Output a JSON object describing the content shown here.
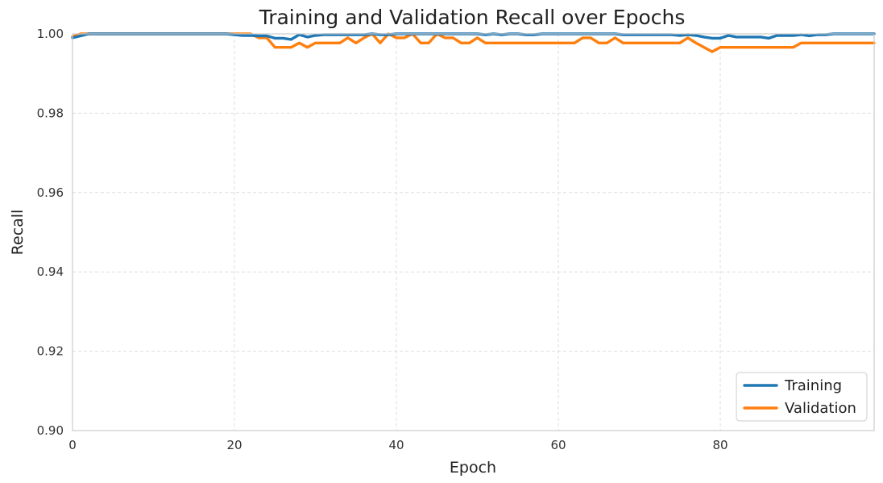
{
  "chart_data": {
    "type": "line",
    "title": "Training and Validation Recall over Epochs",
    "xlabel": "Epoch",
    "ylabel": "Recall",
    "xlim": [
      0,
      99
    ],
    "ylim": [
      0.9,
      1.0
    ],
    "xticks": [
      0,
      20,
      40,
      60,
      80
    ],
    "yticks": [
      0.9,
      0.92,
      0.94,
      0.96,
      0.98,
      1.0
    ],
    "xtick_labels": [
      "0",
      "20",
      "40",
      "60",
      "80"
    ],
    "ytick_labels": [
      "0.90",
      "0.92",
      "0.94",
      "0.96",
      "0.98",
      "1.00"
    ],
    "grid": true,
    "legend_position": "bottom-right",
    "series": [
      {
        "name": "Training",
        "color": "#1f77b4",
        "x": [
          0,
          1,
          2,
          3,
          4,
          5,
          6,
          7,
          8,
          9,
          10,
          11,
          12,
          13,
          14,
          15,
          16,
          17,
          18,
          19,
          20,
          21,
          22,
          23,
          24,
          25,
          26,
          27,
          28,
          29,
          30,
          31,
          32,
          33,
          34,
          35,
          36,
          37,
          38,
          39,
          40,
          41,
          42,
          43,
          44,
          45,
          46,
          47,
          48,
          49,
          50,
          51,
          52,
          53,
          54,
          55,
          56,
          57,
          58,
          59,
          60,
          61,
          62,
          63,
          64,
          65,
          66,
          67,
          68,
          69,
          70,
          71,
          72,
          73,
          74,
          75,
          76,
          77,
          78,
          79,
          80,
          81,
          82,
          83,
          84,
          85,
          86,
          87,
          88,
          89,
          90,
          91,
          92,
          93,
          94,
          95,
          96,
          97,
          98,
          99
        ],
        "values": [
          0.999,
          0.9995,
          1.0,
          1.0,
          1.0,
          1.0,
          1.0,
          1.0,
          1.0,
          1.0,
          1.0,
          1.0,
          1.0,
          1.0,
          1.0,
          1.0,
          1.0,
          1.0,
          1.0,
          1.0,
          0.9998,
          0.9996,
          0.9996,
          0.9995,
          0.9995,
          0.9989,
          0.9989,
          0.9986,
          0.9998,
          0.9992,
          0.9996,
          0.9998,
          0.9998,
          0.9998,
          0.9998,
          0.9998,
          0.9998,
          1.0,
          0.9998,
          0.9998,
          1.0,
          1.0,
          1.0,
          1.0,
          1.0,
          1.0,
          1.0,
          1.0,
          1.0,
          1.0,
          1.0,
          0.9998,
          1.0,
          0.9998,
          1.0,
          1.0,
          0.9998,
          0.9998,
          1.0,
          1.0,
          1.0,
          1.0,
          1.0,
          1.0,
          1.0,
          1.0,
          1.0,
          1.0,
          0.9998,
          0.9998,
          0.9998,
          0.9998,
          0.9998,
          0.9998,
          0.9998,
          0.9996,
          0.9998,
          0.9996,
          0.9992,
          0.9989,
          0.9989,
          0.9996,
          0.9992,
          0.9992,
          0.9992,
          0.9992,
          0.9989,
          0.9996,
          0.9996,
          0.9996,
          0.9998,
          0.9995,
          0.9998,
          0.9998,
          1.0,
          1.0,
          1.0,
          1.0,
          1.0,
          1.0
        ]
      },
      {
        "name": "Validation",
        "color": "#ff7f0e",
        "x": [
          0,
          1,
          2,
          3,
          4,
          5,
          6,
          7,
          8,
          9,
          10,
          11,
          12,
          13,
          14,
          15,
          16,
          17,
          18,
          19,
          20,
          21,
          22,
          23,
          24,
          25,
          26,
          27,
          28,
          29,
          30,
          31,
          32,
          33,
          34,
          35,
          36,
          37,
          38,
          39,
          40,
          41,
          42,
          43,
          44,
          45,
          46,
          47,
          48,
          49,
          50,
          51,
          52,
          53,
          54,
          55,
          56,
          57,
          58,
          59,
          60,
          61,
          62,
          63,
          64,
          65,
          66,
          67,
          68,
          69,
          70,
          71,
          72,
          73,
          74,
          75,
          76,
          77,
          78,
          79,
          80,
          81,
          82,
          83,
          84,
          85,
          86,
          87,
          88,
          89,
          90,
          91,
          92,
          93,
          94,
          95,
          96,
          97,
          98,
          99
        ],
        "values": [
          0.9993,
          1.0,
          1.0,
          1.0,
          1.0,
          1.0,
          1.0,
          1.0,
          1.0,
          1.0,
          1.0,
          1.0,
          1.0,
          1.0,
          1.0,
          1.0,
          1.0,
          1.0,
          1.0,
          1.0,
          1.0,
          1.0,
          1.0,
          0.999,
          0.999,
          0.9966,
          0.9966,
          0.9966,
          0.9977,
          0.9966,
          0.9977,
          0.9977,
          0.9977,
          0.9977,
          0.999,
          0.9977,
          0.999,
          1.0,
          0.9977,
          1.0,
          0.999,
          0.999,
          1.0,
          0.9977,
          0.9977,
          1.0,
          0.999,
          0.999,
          0.9977,
          0.9977,
          0.999,
          0.9977,
          0.9977,
          0.9977,
          0.9977,
          0.9977,
          0.9977,
          0.9977,
          0.9977,
          0.9977,
          0.9977,
          0.9977,
          0.9977,
          0.999,
          0.999,
          0.9977,
          0.9977,
          0.999,
          0.9977,
          0.9977,
          0.9977,
          0.9977,
          0.9977,
          0.9977,
          0.9977,
          0.9977,
          0.999,
          0.9977,
          0.9966,
          0.9955,
          0.9966,
          0.9966,
          0.9966,
          0.9966,
          0.9966,
          0.9966,
          0.9966,
          0.9966,
          0.9966,
          0.9966,
          0.9977,
          0.9977,
          0.9977,
          0.9977,
          0.9977,
          0.9977,
          0.9977,
          0.9977,
          0.9977,
          0.9977
        ]
      }
    ]
  }
}
